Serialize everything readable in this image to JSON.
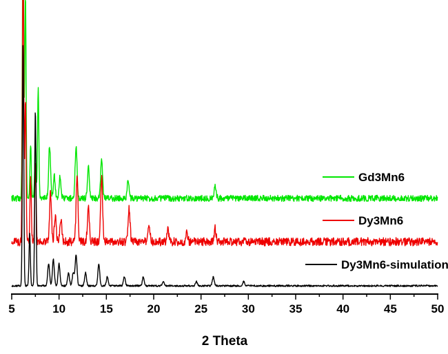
{
  "chart_data": {
    "type": "line",
    "title": "",
    "xlabel": "2 Theta",
    "ylabel": "",
    "xlim": [
      5,
      50
    ],
    "xticks": [
      "5",
      "10",
      "15",
      "20",
      "25",
      "30",
      "35",
      "40",
      "45",
      "50"
    ],
    "grid": false,
    "legend_position": "right, beside each trace",
    "series": [
      {
        "name": "Gd3Mn6",
        "color": "#00e600",
        "baseline": 0.0,
        "peaks": [
          [
            6.2,
            0.68
          ],
          [
            6.45,
            0.46
          ],
          [
            7.0,
            0.12
          ],
          [
            7.5,
            0.13
          ],
          [
            7.8,
            0.25
          ],
          [
            9.0,
            0.12
          ],
          [
            9.5,
            0.05
          ],
          [
            10.1,
            0.05
          ],
          [
            11.8,
            0.12
          ],
          [
            13.1,
            0.07
          ],
          [
            14.5,
            0.09
          ],
          [
            17.3,
            0.04
          ],
          [
            26.5,
            0.03
          ]
        ]
      },
      {
        "name": "Dy3Mn6",
        "color": "#ee0000",
        "baseline": 0.0,
        "peaks": [
          [
            6.2,
            0.68
          ],
          [
            6.45,
            0.32
          ],
          [
            7.0,
            0.14
          ],
          [
            7.5,
            0.18
          ],
          [
            9.1,
            0.11
          ],
          [
            9.6,
            0.06
          ],
          [
            10.2,
            0.05
          ],
          [
            11.9,
            0.15
          ],
          [
            13.1,
            0.08
          ],
          [
            14.5,
            0.15
          ],
          [
            17.4,
            0.08
          ],
          [
            19.5,
            0.04
          ],
          [
            21.5,
            0.03
          ],
          [
            23.5,
            0.02
          ],
          [
            26.5,
            0.03
          ]
        ]
      },
      {
        "name": "Dy3Mn6-simulation",
        "color": "#000000",
        "baseline": 0.0,
        "peaks": [
          [
            6.2,
            0.55
          ],
          [
            6.9,
            0.12
          ],
          [
            7.5,
            0.4
          ],
          [
            8.9,
            0.05
          ],
          [
            9.4,
            0.06
          ],
          [
            10.0,
            0.05
          ],
          [
            11.0,
            0.03
          ],
          [
            11.5,
            0.03
          ],
          [
            11.8,
            0.07
          ],
          [
            12.8,
            0.03
          ],
          [
            14.2,
            0.05
          ],
          [
            15.1,
            0.02
          ],
          [
            16.9,
            0.02
          ],
          [
            18.9,
            0.02
          ],
          [
            21.0,
            0.01
          ],
          [
            24.5,
            0.01
          ],
          [
            26.3,
            0.02
          ],
          [
            29.5,
            0.01
          ]
        ]
      }
    ]
  }
}
